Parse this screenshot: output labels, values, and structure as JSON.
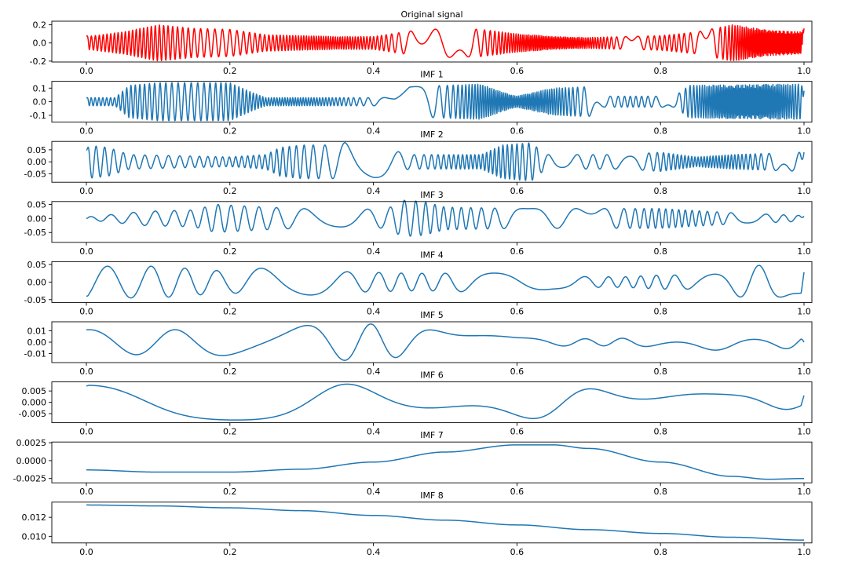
{
  "chart_data": [
    {
      "type": "line",
      "title": "Original signal",
      "color": "#ff0000",
      "xlim": [
        0,
        1
      ],
      "ylim": [
        -0.21,
        0.24
      ],
      "xticks": [
        0,
        0.2,
        0.4,
        0.6,
        0.8,
        1.0
      ],
      "xtick_labels": [
        "0.0",
        "0.2",
        "0.4",
        "0.6",
        "0.8",
        "1.0"
      ],
      "yticks": [
        0.2,
        0,
        -0.2
      ],
      "ytick_labels": [
        "0.2",
        "0.0",
        "-0.2"
      ],
      "envelope": [
        [
          0,
          0.07
        ],
        [
          0.05,
          0.12
        ],
        [
          0.1,
          0.2
        ],
        [
          0.15,
          0.16
        ],
        [
          0.2,
          0.15
        ],
        [
          0.25,
          0.09
        ],
        [
          0.3,
          0.08
        ],
        [
          0.35,
          0.07
        ],
        [
          0.4,
          0.07
        ],
        [
          0.45,
          0.13
        ],
        [
          0.5,
          0.16
        ],
        [
          0.55,
          0.15
        ],
        [
          0.6,
          0.1
        ],
        [
          0.65,
          0.07
        ],
        [
          0.7,
          0.06
        ],
        [
          0.75,
          0.07
        ],
        [
          0.8,
          0.08
        ],
        [
          0.85,
          0.12
        ],
        [
          0.9,
          0.2
        ],
        [
          0.95,
          0.14
        ],
        [
          1.0,
          0.12
        ]
      ],
      "cycles": 170,
      "phase": 0.3,
      "offset": 0.0,
      "end_points": [
        [
          0,
          0.08
        ],
        [
          1.0,
          0.16
        ]
      ]
    },
    {
      "type": "line",
      "title": "IMF 1",
      "color": "#1f77b4",
      "xlim": [
        0,
        1
      ],
      "ylim": [
        -0.15,
        0.15
      ],
      "xticks": [
        0,
        0.2,
        0.4,
        0.6,
        0.8,
        1.0
      ],
      "xtick_labels": [
        "0.0",
        "0.2",
        "0.4",
        "0.6",
        "0.8",
        "1.0"
      ],
      "yticks": [
        0.1,
        0,
        -0.1
      ],
      "ytick_labels": [
        "0.1",
        "0.0",
        "-0.1"
      ],
      "envelope": [
        [
          0,
          0.03
        ],
        [
          0.04,
          0.03
        ],
        [
          0.06,
          0.12
        ],
        [
          0.1,
          0.14
        ],
        [
          0.2,
          0.14
        ],
        [
          0.23,
          0.07
        ],
        [
          0.25,
          0.03
        ],
        [
          0.43,
          0.03
        ],
        [
          0.45,
          0.11
        ],
        [
          0.55,
          0.13
        ],
        [
          0.58,
          0.07
        ],
        [
          0.6,
          0.04
        ],
        [
          0.65,
          0.1
        ],
        [
          0.7,
          0.11
        ],
        [
          0.72,
          0.04
        ],
        [
          0.82,
          0.04
        ],
        [
          0.84,
          0.12
        ],
        [
          1.0,
          0.13
        ]
      ],
      "cycles": 165,
      "phase": 0.1,
      "offset": 0.0,
      "end_points": [
        [
          0,
          0.03
        ],
        [
          1.0,
          0.08
        ]
      ]
    },
    {
      "type": "line",
      "title": "IMF 2",
      "color": "#1f77b4",
      "xlim": [
        0,
        1
      ],
      "ylim": [
        -0.085,
        0.085
      ],
      "xticks": [
        0,
        0.2,
        0.4,
        0.6,
        0.8,
        1.0
      ],
      "xtick_labels": [
        "0.0",
        "0.2",
        "0.4",
        "0.6",
        "0.8",
        "1.0"
      ],
      "yticks": [
        0.05,
        0,
        -0.05
      ],
      "ytick_labels": [
        "0.05",
        "0.00",
        "-0.05"
      ],
      "envelope": [
        [
          0,
          0.07
        ],
        [
          0.03,
          0.06
        ],
        [
          0.06,
          0.03
        ],
        [
          0.2,
          0.02
        ],
        [
          0.25,
          0.03
        ],
        [
          0.27,
          0.06
        ],
        [
          0.3,
          0.07
        ],
        [
          0.35,
          0.07
        ],
        [
          0.36,
          0.08
        ],
        [
          0.4,
          0.07
        ],
        [
          0.45,
          0.03
        ],
        [
          0.55,
          0.03
        ],
        [
          0.58,
          0.07
        ],
        [
          0.62,
          0.08
        ],
        [
          0.64,
          0.03
        ],
        [
          0.75,
          0.03
        ],
        [
          0.8,
          0.04
        ],
        [
          0.85,
          0.02
        ],
        [
          0.9,
          0.03
        ],
        [
          1.0,
          0.04
        ]
      ],
      "cycles": 80,
      "phase": 0.4,
      "offset": 0.0,
      "end_points": [
        [
          0,
          0.05
        ],
        [
          1.0,
          0.04
        ]
      ]
    },
    {
      "type": "line",
      "title": "IMF 3",
      "color": "#1f77b4",
      "xlim": [
        0,
        1
      ],
      "ylim": [
        -0.085,
        0.06
      ],
      "xticks": [
        0,
        0.2,
        0.4,
        0.6,
        0.8,
        1.0
      ],
      "xtick_labels": [
        "0.0",
        "0.2",
        "0.4",
        "0.6",
        "0.8",
        "1.0"
      ],
      "yticks": [
        0.05,
        0,
        -0.05
      ],
      "ytick_labels": [
        "0.05",
        "0.00",
        "-0.05"
      ],
      "envelope": [
        [
          0,
          0.005
        ],
        [
          0.04,
          0.015
        ],
        [
          0.08,
          0.025
        ],
        [
          0.15,
          0.03
        ],
        [
          0.18,
          0.05
        ],
        [
          0.25,
          0.04
        ],
        [
          0.3,
          0.035
        ],
        [
          0.35,
          0.03
        ],
        [
          0.42,
          0.035
        ],
        [
          0.44,
          0.065
        ],
        [
          0.47,
          0.06
        ],
        [
          0.5,
          0.04
        ],
        [
          0.6,
          0.035
        ],
        [
          0.7,
          0.035
        ],
        [
          0.8,
          0.035
        ],
        [
          0.9,
          0.02
        ],
        [
          1.0,
          0.01
        ]
      ],
      "cycles": 38,
      "phase": 0.2,
      "offset": 0.0,
      "end_points": [
        [
          0,
          0.0
        ],
        [
          1.0,
          0.008
        ]
      ]
    },
    {
      "type": "line",
      "title": "IMF 4",
      "color": "#1f77b4",
      "xlim": [
        0,
        1
      ],
      "ylim": [
        -0.058,
        0.058
      ],
      "xticks": [
        0,
        0.2,
        0.4,
        0.6,
        0.8,
        1.0
      ],
      "xtick_labels": [
        "0.0",
        "0.2",
        "0.4",
        "0.6",
        "0.8",
        "1.0"
      ],
      "yticks": [
        0.05,
        0,
        -0.05
      ],
      "ytick_labels": [
        "0.05",
        "0.00",
        "-0.05"
      ],
      "envelope": [
        [
          0,
          0.045
        ],
        [
          0.1,
          0.045
        ],
        [
          0.2,
          0.03
        ],
        [
          0.27,
          0.045
        ],
        [
          0.35,
          0.03
        ],
        [
          0.45,
          0.025
        ],
        [
          0.5,
          0.025
        ],
        [
          0.55,
          0.03
        ],
        [
          0.6,
          0.03
        ],
        [
          0.65,
          0.02
        ],
        [
          0.7,
          0.015
        ],
        [
          0.75,
          0.015
        ],
        [
          0.8,
          0.02
        ],
        [
          0.85,
          0.02
        ],
        [
          0.9,
          0.04
        ],
        [
          0.95,
          0.05
        ],
        [
          1.0,
          0.03
        ]
      ],
      "cycles": 17,
      "phase": -1.2,
      "offset": 0.0,
      "end_points": [
        [
          0,
          -0.04
        ],
        [
          1.0,
          0.028
        ]
      ]
    },
    {
      "type": "line",
      "title": "IMF 5",
      "color": "#1f77b4",
      "xlim": [
        0,
        1
      ],
      "ylim": [
        -0.018,
        0.018
      ],
      "xticks": [
        0,
        0.2,
        0.4,
        0.6,
        0.8,
        1.0
      ],
      "xtick_labels": [
        "0.0",
        "0.2",
        "0.4",
        "0.6",
        "0.8",
        "1.0"
      ],
      "yticks": [
        0.01,
        0,
        -0.01
      ],
      "ytick_labels": [
        "0.01",
        "0.00",
        "-0.01"
      ],
      "envelope": [
        [
          0,
          0.011
        ],
        [
          0.15,
          0.011
        ],
        [
          0.25,
          0.013
        ],
        [
          0.35,
          0.016
        ],
        [
          0.4,
          0.016
        ],
        [
          0.45,
          0.012
        ],
        [
          0.5,
          0.01
        ],
        [
          0.6,
          0.004
        ],
        [
          0.7,
          0.003
        ],
        [
          0.8,
          0.004
        ],
        [
          0.9,
          0.008
        ],
        [
          1.0,
          0.005
        ]
      ],
      "cycles": 7.5,
      "phase": 1.4,
      "offset": 0.0,
      "end_points": [
        [
          0,
          0.011
        ],
        [
          1.0,
          0.0
        ]
      ]
    },
    {
      "type": "line",
      "title": "IMF 6",
      "color": "#1f77b4",
      "xlim": [
        0,
        1
      ],
      "ylim": [
        -0.009,
        0.009
      ],
      "xticks": [
        0,
        0.2,
        0.4,
        0.6,
        0.8,
        1.0
      ],
      "xtick_labels": [
        "0.0",
        "0.2",
        "0.4",
        "0.6",
        "0.8",
        "1.0"
      ],
      "yticks": [
        0.005,
        0,
        -0.005
      ],
      "ytick_labels": [
        "0.005",
        "0.000",
        "-0.005"
      ],
      "envelope": [
        [
          0,
          0.0075
        ],
        [
          0.2,
          0.0078
        ],
        [
          0.35,
          0.008
        ],
        [
          0.47,
          0.008
        ],
        [
          0.6,
          0.0075
        ],
        [
          0.7,
          0.006
        ],
        [
          0.8,
          0.0045
        ],
        [
          0.9,
          0.0035
        ],
        [
          1.0,
          0.003
        ]
      ],
      "cycles": 2.6,
      "phase": 1.57,
      "offset": 0.0,
      "end_points": [
        [
          0,
          0.0072
        ],
        [
          1.0,
          0.003
        ]
      ]
    },
    {
      "type": "line",
      "title": "IMF 7",
      "color": "#1f77b4",
      "xlim": [
        0,
        1
      ],
      "ylim": [
        -0.0031,
        0.0026
      ],
      "xticks": [
        0,
        0.2,
        0.4,
        0.6,
        0.8,
        1.0
      ],
      "xtick_labels": [
        "0.0",
        "0.2",
        "0.4",
        "0.6",
        "0.8",
        "1.0"
      ],
      "yticks": [
        0.0025,
        0,
        -0.0025
      ],
      "ytick_labels": [
        "0.0025",
        "0.0000",
        "-0.0025"
      ],
      "points": [
        [
          0,
          -0.0013
        ],
        [
          0.1,
          -0.0016
        ],
        [
          0.2,
          -0.0016
        ],
        [
          0.3,
          -0.0012
        ],
        [
          0.4,
          -0.0002
        ],
        [
          0.5,
          0.0012
        ],
        [
          0.6,
          0.0022
        ],
        [
          0.65,
          0.0022
        ],
        [
          0.7,
          0.0017
        ],
        [
          0.8,
          -0.0002
        ],
        [
          0.9,
          -0.0022
        ],
        [
          0.95,
          -0.0026
        ],
        [
          1.0,
          -0.0025
        ]
      ]
    },
    {
      "type": "line",
      "title": "IMF 8",
      "color": "#1f77b4",
      "xlim": [
        0,
        1
      ],
      "ylim": [
        0.0093,
        0.0136
      ],
      "xticks": [
        0,
        0.2,
        0.4,
        0.6,
        0.8,
        1.0
      ],
      "xtick_labels": [
        "0.0",
        "0.2",
        "0.4",
        "0.6",
        "0.8",
        "1.0"
      ],
      "yticks": [
        0.012,
        0.01
      ],
      "ytick_labels": [
        "0.012",
        "0.010"
      ],
      "points": [
        [
          0,
          0.0133
        ],
        [
          0.1,
          0.0132
        ],
        [
          0.2,
          0.013
        ],
        [
          0.3,
          0.0127
        ],
        [
          0.4,
          0.0122
        ],
        [
          0.5,
          0.0117
        ],
        [
          0.6,
          0.0112
        ],
        [
          0.7,
          0.0107
        ],
        [
          0.8,
          0.0103
        ],
        [
          0.9,
          0.0099
        ],
        [
          1.0,
          0.0096
        ]
      ]
    }
  ]
}
